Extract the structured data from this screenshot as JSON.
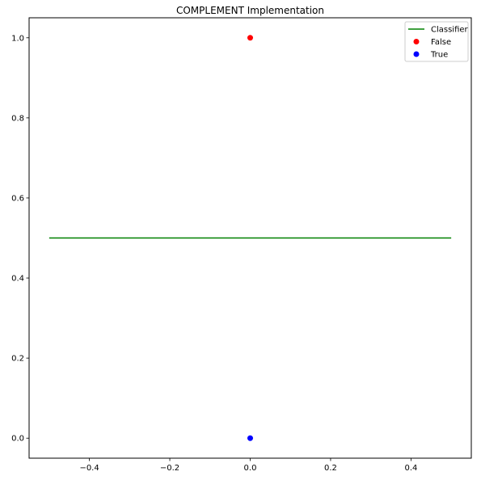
{
  "chart_data": {
    "type": "scatter",
    "title": "COMPLEMENT Implementation",
    "xlabel": "",
    "ylabel": "",
    "xlim": [
      -0.55,
      0.55
    ],
    "ylim": [
      -0.05,
      1.05
    ],
    "grid": false,
    "legend_position": "top-right",
    "x_ticks": [
      -0.4,
      -0.2,
      0.0,
      0.2,
      0.4
    ],
    "x_tick_labels": [
      "−0.4",
      "−0.2",
      "0.0",
      "0.2",
      "0.4"
    ],
    "y_ticks": [
      0.0,
      0.2,
      0.4,
      0.6,
      0.8,
      1.0
    ],
    "y_tick_labels": [
      "0.0",
      "0.2",
      "0.4",
      "0.6",
      "0.8",
      "1.0"
    ],
    "lines": [
      {
        "name": "Classifier",
        "color": "#008000",
        "x": [
          -0.5,
          0.5
        ],
        "y": [
          0.5,
          0.5
        ]
      }
    ],
    "series": [
      {
        "name": "False",
        "color": "#ff0000",
        "points": [
          {
            "x": 0.0,
            "y": 1.0
          }
        ]
      },
      {
        "name": "True",
        "color": "#0000ff",
        "points": [
          {
            "x": 0.0,
            "y": 0.0
          }
        ]
      }
    ],
    "legend": [
      {
        "label": "Classifier",
        "kind": "line",
        "color": "#008000"
      },
      {
        "label": "False",
        "kind": "marker",
        "color": "#ff0000"
      },
      {
        "label": "True",
        "kind": "marker",
        "color": "#0000ff"
      }
    ]
  }
}
